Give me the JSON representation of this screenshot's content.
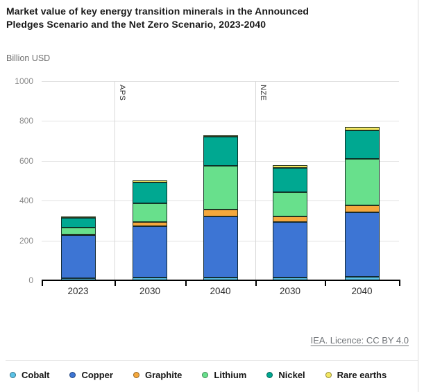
{
  "header": {
    "title_lines": [
      "Market value of key energy transition minerals in the Announced",
      "Pledges Scenario and the Net Zero Scenario, 2023-2040"
    ],
    "unit_label": "Billion USD"
  },
  "chart_data": {
    "type": "bar",
    "stacked": true,
    "title": "Market value of key energy transition minerals in the Announced Pledges Scenario and the Net Zero Scenario, 2023-2040",
    "ylabel": "Billion USD",
    "categories": [
      "2023",
      "2030",
      "2040",
      "2030",
      "2040"
    ],
    "scenario_dividers": [
      {
        "label": "APS",
        "boundary": 1
      },
      {
        "label": "NZE",
        "boundary": 3
      }
    ],
    "series": [
      {
        "name": "Cobalt",
        "color": "#5BC2E7",
        "values": [
          10,
          13,
          15,
          14,
          16
        ]
      },
      {
        "name": "Copper",
        "color": "#3D75D4",
        "values": [
          217,
          258,
          305,
          278,
          325
        ]
      },
      {
        "name": "Graphite",
        "color": "#F5A83D",
        "values": [
          4,
          22,
          34,
          30,
          37
        ]
      },
      {
        "name": "Lithium",
        "color": "#68E08C",
        "values": [
          33,
          93,
          220,
          119,
          232
        ]
      },
      {
        "name": "Nickel",
        "color": "#00A891",
        "values": [
          50,
          106,
          146,
          125,
          143
        ]
      },
      {
        "name": "Rare earths",
        "color": "#F3E762",
        "values": [
          6,
          9,
          10,
          11,
          17
        ]
      }
    ],
    "totals": [
      320,
      501,
      730,
      577,
      770
    ],
    "ylim": [
      0,
      1000
    ],
    "yticks": [
      0,
      200,
      400,
      600,
      800,
      1000
    ],
    "grid": true,
    "legend_position": "bottom"
  },
  "footer": {
    "source_text": "IEA. Licence: CC BY 4.0"
  }
}
